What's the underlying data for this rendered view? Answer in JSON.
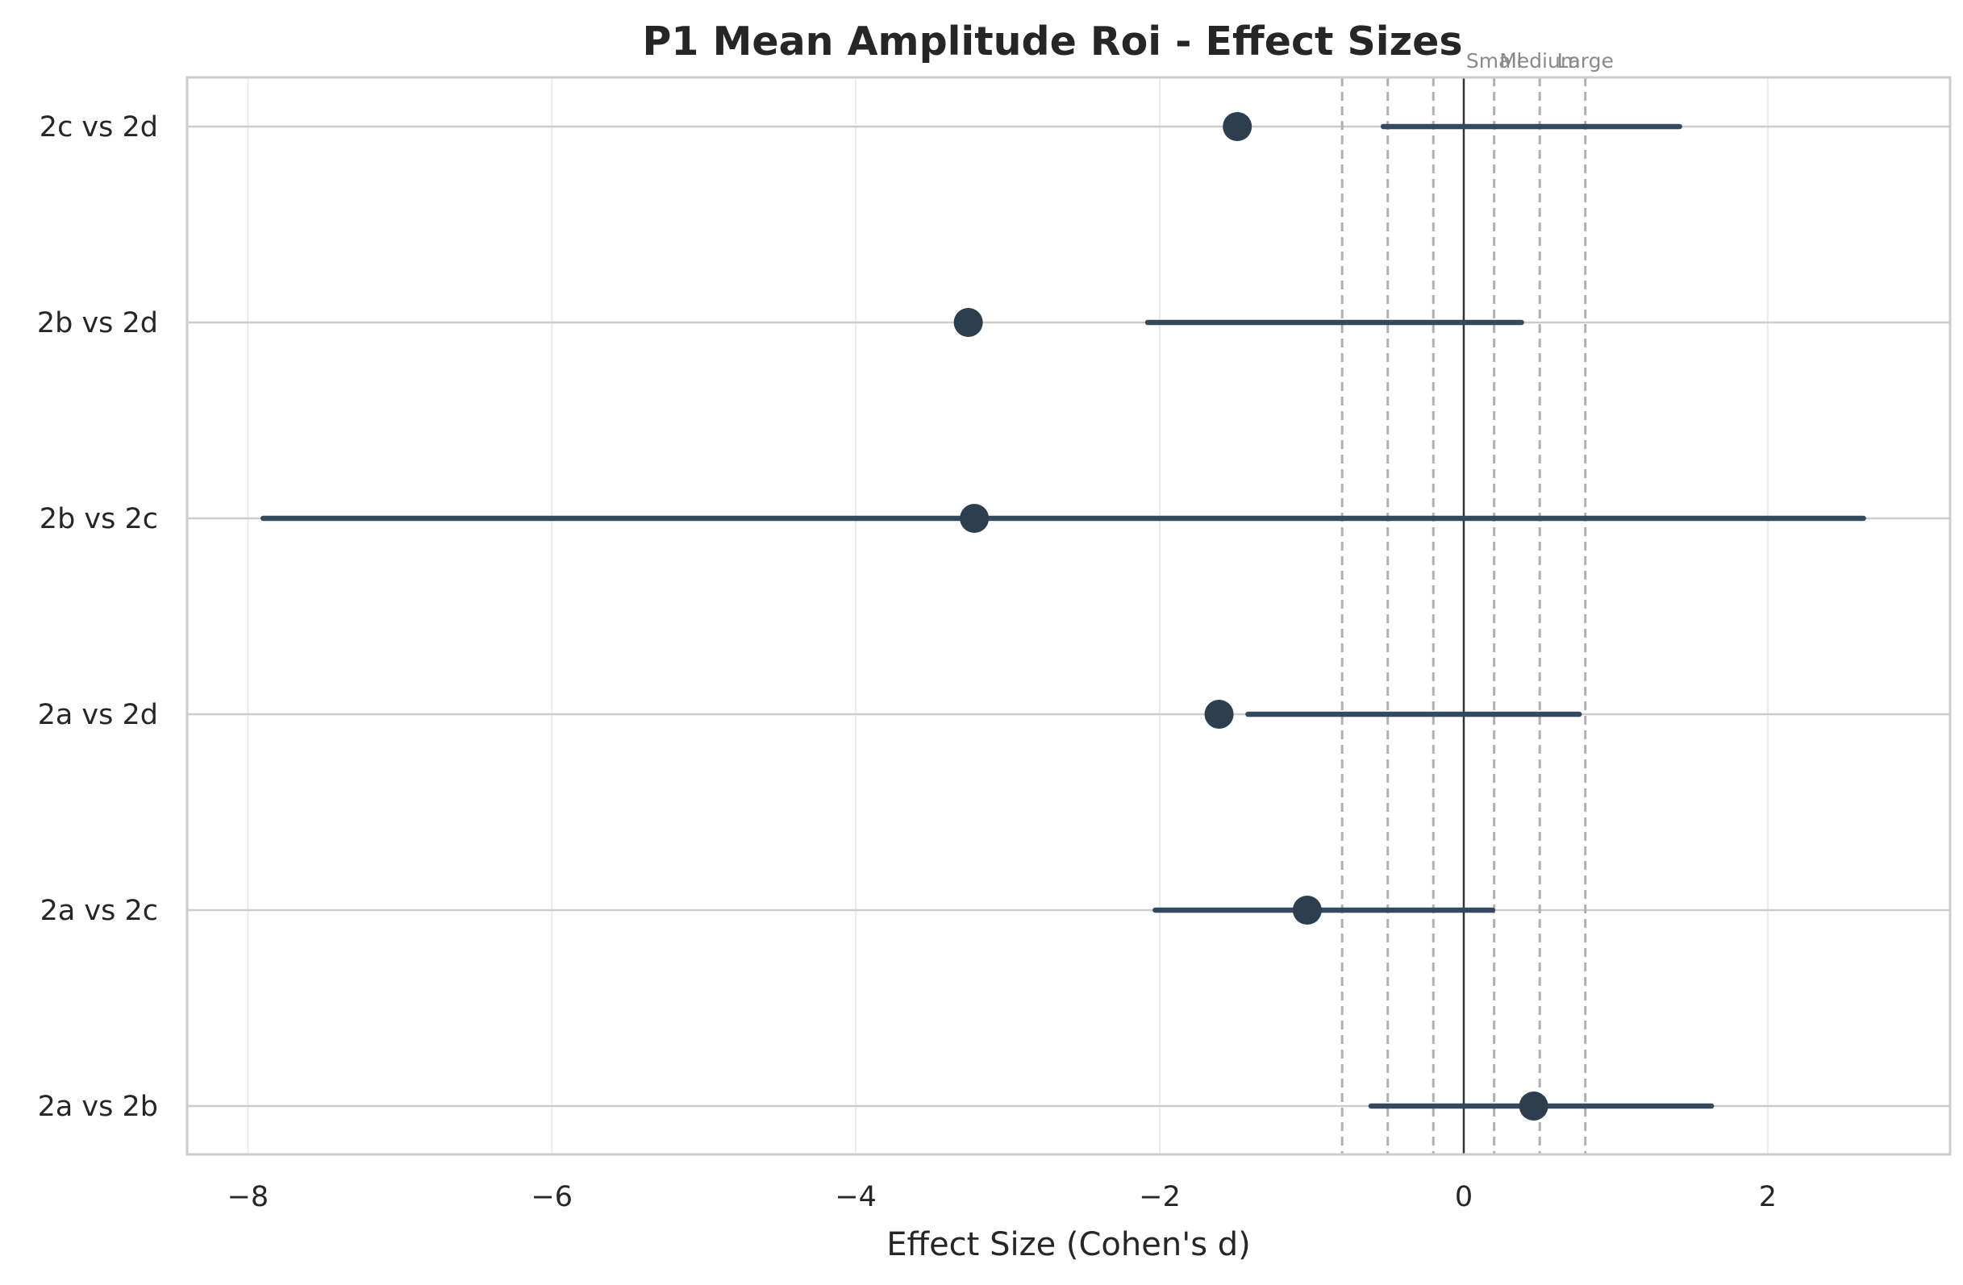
{
  "chart_data": {
    "type": "forest",
    "title": "P1 Mean Amplitude Roi - Effect Sizes",
    "xlabel": "Effect Size (Cohen's d)",
    "ylabel": "",
    "xlim": [
      -8.4,
      3.2
    ],
    "xticks": [
      -8,
      -6,
      -4,
      -2,
      0,
      2
    ],
    "xtick_labels": [
      "−8",
      "−6",
      "−4",
      "−2",
      "0",
      "2"
    ],
    "grid": true,
    "comparisons": [
      {
        "label": "2c vs 2d",
        "effect": -1.49,
        "ci_low": -0.53,
        "ci_high": 1.42
      },
      {
        "label": "2b vs 2d",
        "effect": -3.26,
        "ci_low": -2.08,
        "ci_high": 0.38
      },
      {
        "label": "2b vs 2c",
        "effect": -3.22,
        "ci_low": -7.9,
        "ci_high": 2.63
      },
      {
        "label": "2a vs 2d",
        "effect": -1.61,
        "ci_low": -1.42,
        "ci_high": 0.76
      },
      {
        "label": "2a vs 2c",
        "effect": -1.03,
        "ci_low": -2.03,
        "ci_high": 0.19
      },
      {
        "label": "2a vs 2b",
        "effect": 0.46,
        "ci_low": -0.61,
        "ci_high": 1.63
      }
    ],
    "reference_lines": [
      {
        "value": -0.8,
        "style": "dashed"
      },
      {
        "value": -0.5,
        "style": "dashed"
      },
      {
        "value": -0.2,
        "style": "dashed"
      },
      {
        "value": 0.2,
        "style": "dashed",
        "label": "Small"
      },
      {
        "value": 0.5,
        "style": "dashed",
        "label": "Medium"
      },
      {
        "value": 0.8,
        "style": "dashed",
        "label": "Large"
      }
    ],
    "zero_line": 0,
    "colors": {
      "point": "#2c3e50",
      "interval": "#34495e",
      "reference": "#b0b0b0",
      "zero": "#333333"
    }
  }
}
